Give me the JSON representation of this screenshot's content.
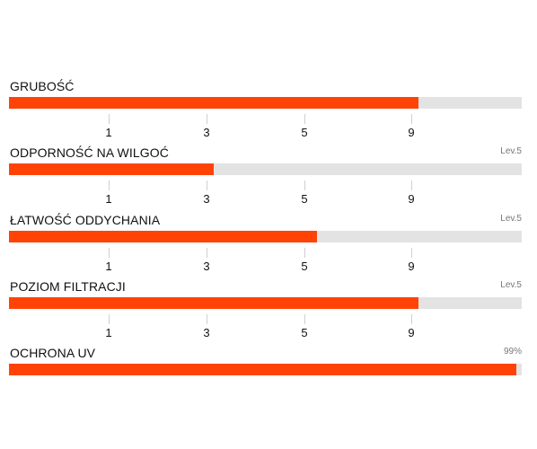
{
  "colors": {
    "fill": "#ff4307",
    "track": "#e3e3e3",
    "tick": "#cfcfcf",
    "level_text": "#777777"
  },
  "ratings": [
    {
      "label": "GRUBOŚĆ",
      "level_text": "",
      "fill_fraction": 0.798,
      "scale_ticks": [
        "1",
        "3",
        "5",
        "9"
      ]
    },
    {
      "label": "ODPORNOŚĆ NA WILGOĆ",
      "level_text": "Lev.5",
      "fill_fraction": 0.4,
      "scale_ticks": [
        "1",
        "3",
        "5",
        "9"
      ]
    },
    {
      "label": "ŁATWOŚĆ ODDYCHANIA",
      "level_text": "Lev.5",
      "fill_fraction": 0.6,
      "scale_ticks": [
        "1",
        "3",
        "5",
        "9"
      ]
    },
    {
      "label": "POZIOM FILTRACJI",
      "level_text": "Lev.5",
      "fill_fraction": 0.798,
      "scale_ticks": [
        "1",
        "3",
        "5",
        "9"
      ]
    },
    {
      "label": "OCHRONA UV",
      "level_text": "99%",
      "fill_fraction": 0.99,
      "scale_ticks": []
    }
  ]
}
